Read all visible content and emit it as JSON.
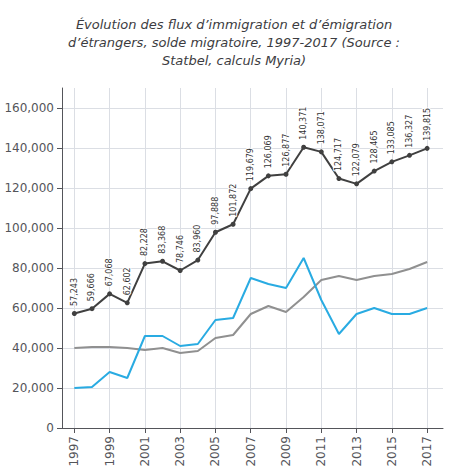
{
  "chart_data": {
    "type": "line",
    "title": "Évolution des flux d’immigration et d’émigration\nd’étrangers, solde migratoire, 1997-2017 (Source :\nStatbel, calculs Myria)",
    "x": [
      1997,
      1998,
      1999,
      2000,
      2001,
      2002,
      2003,
      2004,
      2005,
      2006,
      2007,
      2008,
      2009,
      2010,
      2011,
      2012,
      2013,
      2014,
      2015,
      2016,
      2017
    ],
    "series": [
      {
        "color": "#909090",
        "values": [
          40000,
          40500,
          40500,
          40000,
          39000,
          40000,
          37500,
          38500,
          45000,
          46500,
          57000,
          61000,
          58000,
          65500,
          74000,
          76000,
          74000,
          76000,
          77000,
          79500,
          83000
        ]
      },
      {
        "color": "#29abe2",
        "values": [
          20000,
          20500,
          28000,
          25000,
          46000,
          46000,
          41000,
          42000,
          54000,
          55000,
          75000,
          72000,
          70000,
          85000,
          64000,
          47000,
          57000,
          60000,
          57000,
          57000,
          60000
        ]
      },
      {
        "color": "#404040",
        "marker": "circle",
        "data_labels": true,
        "values": [
          57243,
          59666,
          67068,
          62602,
          82228,
          83368,
          78746,
          83960,
          97888,
          101872,
          119679,
          126069,
          126877,
          140371,
          138071,
          124717,
          122079,
          128465,
          133085,
          136327,
          139815
        ],
        "value_labels": [
          "57,243",
          "59,666",
          "67,068",
          "62,602",
          "82,228",
          "83,368",
          "78,746",
          "83,960",
          "97,888",
          "101,872",
          "119,679",
          "126,069",
          "126,877",
          "140,371",
          "138,071",
          "124,717",
          "122,079",
          "128,465",
          "133,085",
          "136,327",
          "139,815"
        ]
      }
    ],
    "xlim": [
      1996.3,
      2017.9
    ],
    "xticks": [
      1997,
      1999,
      2001,
      2003,
      2005,
      2007,
      2009,
      2011,
      2013,
      2015,
      2017
    ],
    "ylim": [
      0,
      170000
    ],
    "yticks": [
      0,
      {
        "value": 20000,
        "label": "20,000"
      },
      {
        "value": 40000,
        "label": "40,000"
      },
      {
        "value": 60000,
        "label": "60,000"
      },
      {
        "value": 80000,
        "label": "80,000"
      },
      {
        "value": 100000,
        "label": "100,000"
      },
      {
        "value": 120000,
        "label": "120,000"
      },
      {
        "value": 140000,
        "label": "140,000"
      },
      {
        "value": 160000,
        "label": "160,000"
      }
    ],
    "grid": true
  }
}
